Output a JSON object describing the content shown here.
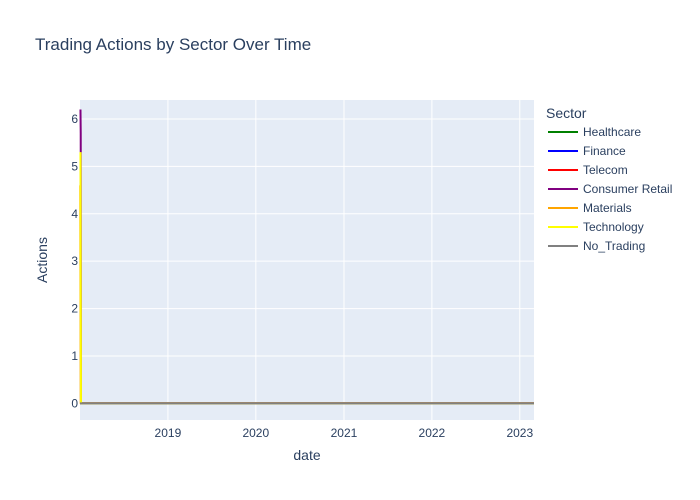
{
  "chart_data": {
    "type": "line",
    "title": "Trading Actions by Sector Over Time",
    "xlabel": "date",
    "ylabel": "Actions",
    "x_ticks": [
      "2019",
      "2020",
      "2021",
      "2022",
      "2023"
    ],
    "y_ticks": [
      "0",
      "1",
      "2",
      "3",
      "4",
      "5",
      "6"
    ],
    "xlim": [
      "2018-01-01",
      "2023-03-01"
    ],
    "ylim": [
      -0.35,
      6.4
    ],
    "grid": true,
    "legend": {
      "title": "Sector",
      "placement": "right"
    },
    "series": [
      {
        "name": "Healthcare",
        "color": "#008000",
        "points": [
          [
            "2018-01-02",
            0
          ],
          [
            "2023-03-01",
            0
          ]
        ]
      },
      {
        "name": "Finance",
        "color": "#0000ff",
        "points": [
          [
            "2018-01-02",
            0
          ],
          [
            "2023-03-01",
            0
          ]
        ]
      },
      {
        "name": "Telecom",
        "color": "#ff0000",
        "points": [
          [
            "2018-01-02",
            0
          ],
          [
            "2023-03-01",
            0
          ]
        ]
      },
      {
        "name": "Consumer Retail",
        "color": "#800080",
        "points": [
          [
            "2018-01-03",
            6.2
          ],
          [
            "2018-01-04",
            5.7
          ],
          [
            "2018-01-05",
            0
          ],
          [
            "2023-03-01",
            0
          ]
        ]
      },
      {
        "name": "Materials",
        "color": "#ffa500",
        "points": [
          [
            "2018-01-02",
            4.6
          ],
          [
            "2018-01-04",
            0
          ],
          [
            "2023-03-01",
            0
          ]
        ]
      },
      {
        "name": "Technology",
        "color": "#ffff00",
        "points": [
          [
            "2018-01-03",
            5.3
          ],
          [
            "2018-01-05",
            0
          ],
          [
            "2023-03-01",
            0
          ]
        ]
      },
      {
        "name": "No_Trading",
        "color": "#808080",
        "points": [
          [
            "2018-01-01",
            0
          ],
          [
            "2023-03-01",
            0
          ]
        ]
      }
    ]
  }
}
